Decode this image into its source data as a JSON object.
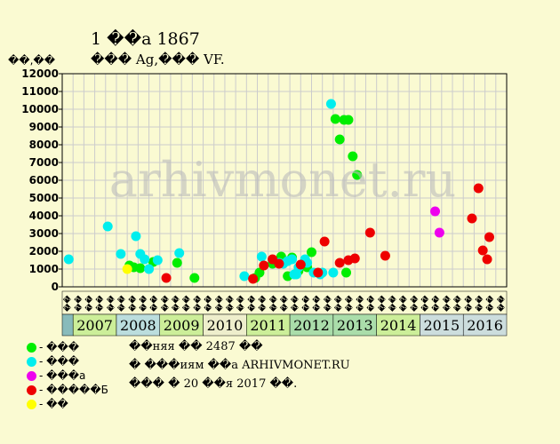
{
  "header": {
    "title": "1 ��а 1867",
    "subtitle": "��� Ag,��� VF."
  },
  "watermark": "arhivmonet.ru",
  "legend": [
    {
      "label": "- ���",
      "color": "#00ee00"
    },
    {
      "label": "- ���",
      "color": "#00eeee"
    },
    {
      "label": "- ���а",
      "color": "#ee00ee"
    },
    {
      "label": "- �����Б",
      "color": "#ee0000"
    },
    {
      "label": "- ��",
      "color": "#ffff00"
    }
  ],
  "footer": [
    "��няя �� 2487 ��",
    "� ���иям ��а ARHIVMONET.RU",
    "��� � 20 ��я 2017 ��."
  ],
  "chart_data": {
    "type": "scatter",
    "title": "1 ��а 1867",
    "subtitle": "��� Ag,��� VF.",
    "ylabel": "��,��",
    "ylim": [
      0,
      12000
    ],
    "yticks": [
      0,
      1000,
      2000,
      3000,
      4000,
      5000,
      6000,
      7000,
      8000,
      9000,
      10000,
      11000,
      12000
    ],
    "grid": true,
    "quarter_labels": [
      "��",
      "��",
      "��",
      "��"
    ],
    "years": [
      {
        "label": "2007",
        "color": "#ccee99"
      },
      {
        "label": "2008",
        "color": "#bbdddd"
      },
      {
        "label": "2009",
        "color": "#ccee99"
      },
      {
        "label": "2010",
        "color": "#eeeecc"
      },
      {
        "label": "2011",
        "color": "#ccee99"
      },
      {
        "label": "2012",
        "color": "#aaddaa"
      },
      {
        "label": "2013",
        "color": "#aaddaa"
      },
      {
        "label": "2014",
        "color": "#ccee99"
      },
      {
        "label": "2015",
        "color": "#ccdddd"
      },
      {
        "label": "2016",
        "color": "#ccdddd"
      }
    ],
    "series": [
      {
        "name": "- ���",
        "color": "#00ee00",
        "points": [
          [
            2008.3,
            1200
          ],
          [
            2008.4,
            1100
          ],
          [
            2008.55,
            1050
          ],
          [
            2008.85,
            1400
          ],
          [
            2009.4,
            1350
          ],
          [
            2009.8,
            500
          ],
          [
            2011.2,
            500
          ],
          [
            2011.3,
            800
          ],
          [
            2011.6,
            1300
          ],
          [
            2011.8,
            1700
          ],
          [
            2011.95,
            600
          ],
          [
            2012.05,
            1650
          ],
          [
            2012.2,
            900
          ],
          [
            2012.3,
            1250
          ],
          [
            2012.4,
            1100
          ],
          [
            2012.5,
            1950
          ],
          [
            2013.05,
            9450
          ],
          [
            2013.15,
            8300
          ],
          [
            2013.25,
            9400
          ],
          [
            2013.3,
            800
          ],
          [
            2013.35,
            9400
          ],
          [
            2013.45,
            7350
          ],
          [
            2013.55,
            6300
          ]
        ]
      },
      {
        "name": "- ���",
        "color": "#00eeee",
        "points": [
          [
            2006.9,
            1550
          ],
          [
            2007.8,
            3400
          ],
          [
            2008.1,
            1850
          ],
          [
            2008.45,
            2850
          ],
          [
            2008.55,
            1850
          ],
          [
            2008.65,
            1550
          ],
          [
            2008.75,
            1000
          ],
          [
            2008.95,
            1500
          ],
          [
            2009.45,
            1900
          ],
          [
            2010.95,
            600
          ],
          [
            2011.35,
            1700
          ],
          [
            2011.75,
            1350
          ],
          [
            2011.85,
            1300
          ],
          [
            2011.95,
            1450
          ],
          [
            2012.05,
            1550
          ],
          [
            2012.1,
            700
          ],
          [
            2012.15,
            700
          ],
          [
            2012.2,
            1100
          ],
          [
            2012.35,
            1550
          ],
          [
            2012.4,
            1350
          ],
          [
            2012.55,
            800
          ],
          [
            2012.7,
            700
          ],
          [
            2012.75,
            800
          ],
          [
            2012.95,
            10300
          ],
          [
            2013.0,
            800
          ]
        ]
      },
      {
        "name": "- ���а",
        "color": "#ee00ee",
        "points": [
          [
            2015.35,
            4250
          ],
          [
            2015.45,
            3050
          ]
        ]
      },
      {
        "name": "- �����Б",
        "color": "#ee0000",
        "points": [
          [
            2009.15,
            500
          ],
          [
            2011.15,
            450
          ],
          [
            2011.4,
            1200
          ],
          [
            2011.6,
            1550
          ],
          [
            2011.75,
            1300
          ],
          [
            2012.25,
            1250
          ],
          [
            2012.65,
            800
          ],
          [
            2012.8,
            2550
          ],
          [
            2013.15,
            1350
          ],
          [
            2013.35,
            1500
          ],
          [
            2013.5,
            1600
          ],
          [
            2013.85,
            3050
          ],
          [
            2014.2,
            1750
          ],
          [
            2016.2,
            3850
          ],
          [
            2016.35,
            5550
          ],
          [
            2016.45,
            2050
          ],
          [
            2016.55,
            1550
          ],
          [
            2016.6,
            2800
          ]
        ]
      },
      {
        "name": "- ��",
        "color": "#ffff00",
        "points": [
          [
            2008.25,
            1000
          ]
        ]
      }
    ]
  }
}
